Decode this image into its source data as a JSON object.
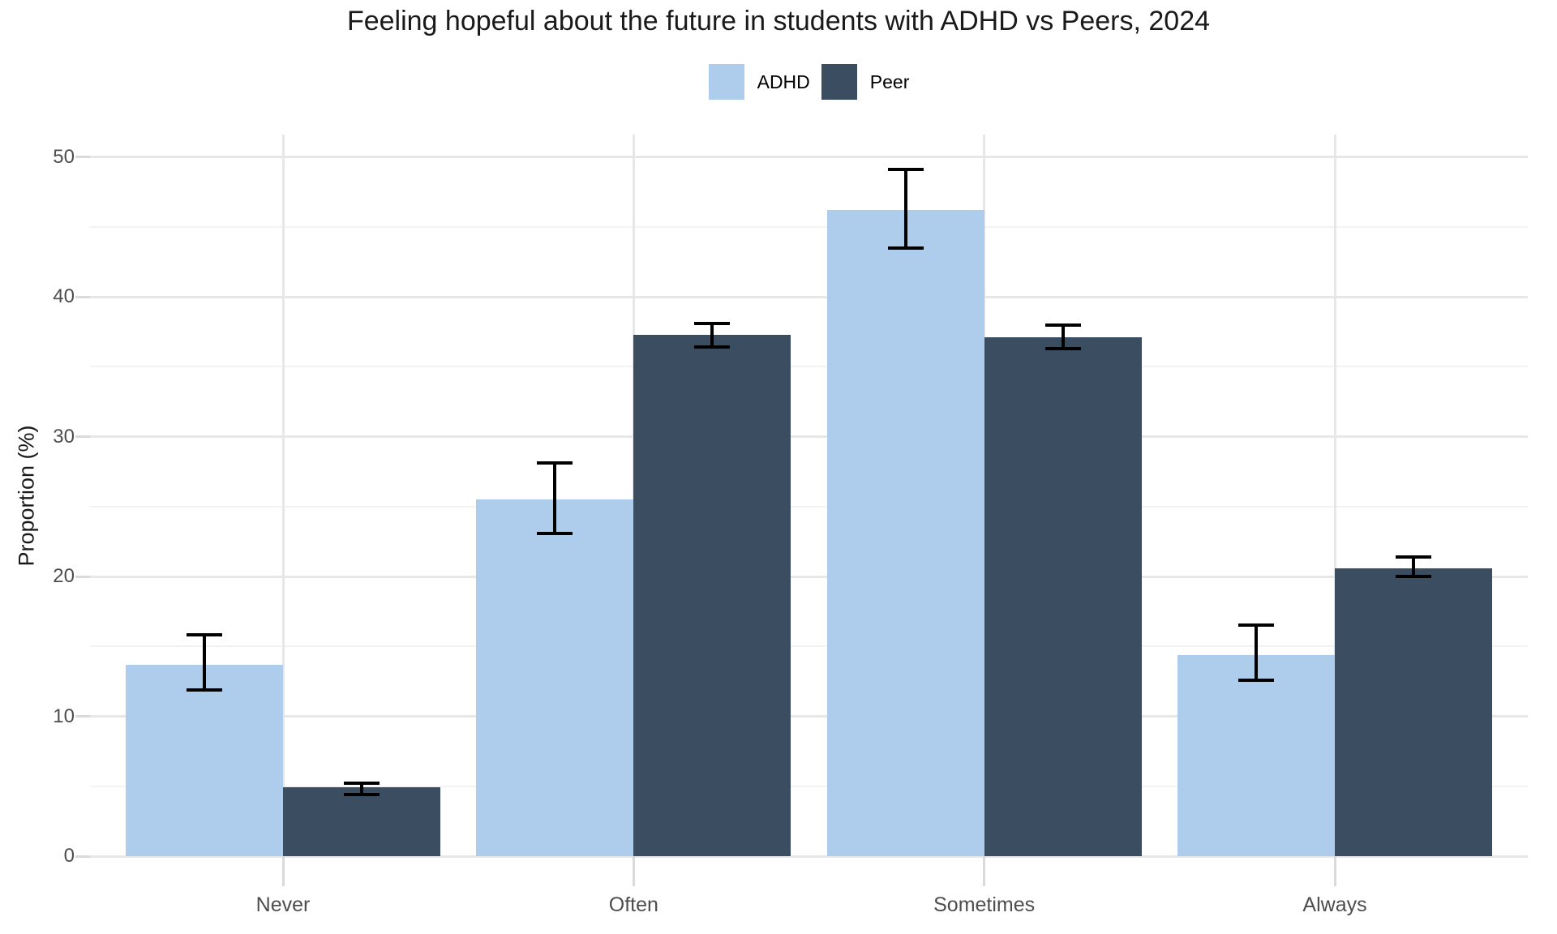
{
  "chart_data": {
    "type": "bar",
    "title": "Feeling hopeful about the future in students with ADHD vs Peers, 2024",
    "xlabel": "",
    "ylabel": "Proportion (%)",
    "categories": [
      "Never",
      "Often",
      "Sometimes",
      "Always"
    ],
    "series": [
      {
        "name": "ADHD",
        "color": "#AECDEC",
        "values": [
          13.7,
          25.5,
          46.2,
          14.4
        ],
        "error_low": [
          11.9,
          23.1,
          43.5,
          12.6
        ],
        "error_high": [
          15.8,
          28.1,
          49.1,
          16.5
        ]
      },
      {
        "name": "Peer",
        "color": "#3B4E61",
        "values": [
          4.9,
          37.3,
          37.1,
          20.6
        ],
        "error_low": [
          4.4,
          36.4,
          36.3,
          20.0
        ],
        "error_high": [
          5.2,
          38.1,
          38.0,
          21.4
        ]
      }
    ],
    "y_ticks": [
      0,
      10,
      20,
      30,
      40,
      50
    ],
    "y_minor_ticks": [
      5,
      15,
      25,
      35,
      45
    ],
    "ylim": [
      0,
      51.6
    ],
    "grid": true,
    "legend_position": "top-center",
    "error_bars": true,
    "colors": {
      "grid_major": "#e7e7e7",
      "grid_minor": "#f3f3f3",
      "axis_tick": "#dadada",
      "axis_text": "#4d4d4d",
      "title_text": "#1a1a1a",
      "error_bar": "#000000",
      "background": "#ffffff"
    }
  }
}
